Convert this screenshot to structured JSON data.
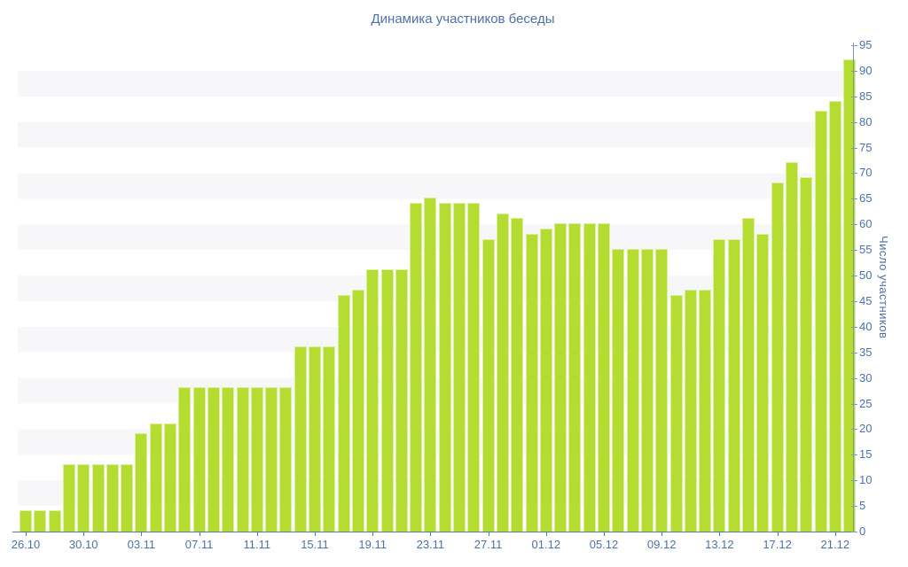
{
  "chart_data": {
    "type": "bar",
    "title": "Динамика участников беседы",
    "ylabel": "Число участников",
    "xlabel": "",
    "ylim": [
      0,
      95
    ],
    "y_ticks": [
      0,
      5,
      10,
      15,
      20,
      25,
      30,
      35,
      40,
      45,
      50,
      55,
      60,
      65,
      70,
      75,
      80,
      85,
      90,
      95
    ],
    "x_tick_labels": [
      "26.10",
      "30.10",
      "03.11",
      "07.11",
      "11.11",
      "15.11",
      "19.11",
      "23.11",
      "27.11",
      "01.12",
      "05.12",
      "09.12",
      "13.12",
      "17.12",
      "21.12"
    ],
    "grid": "horizontal-stripes-every-5-units",
    "legend_position": "none",
    "x": [
      "26.10",
      "27.10",
      "28.10",
      "29.10",
      "30.10",
      "31.10",
      "01.11",
      "02.11",
      "03.11",
      "04.11",
      "05.11",
      "06.11",
      "07.11",
      "08.11",
      "09.11",
      "10.11",
      "11.11",
      "12.11",
      "13.11",
      "14.11",
      "15.11",
      "16.11",
      "17.11",
      "18.11",
      "19.11",
      "20.11",
      "21.11",
      "22.11",
      "23.11",
      "24.11",
      "25.11",
      "26.11",
      "27.11",
      "28.11",
      "29.11",
      "30.11",
      "01.12",
      "02.12",
      "03.12",
      "04.12",
      "05.12",
      "06.12",
      "07.12",
      "08.12",
      "09.12",
      "10.12",
      "11.12",
      "12.12",
      "13.12",
      "14.12",
      "15.12",
      "16.12",
      "17.12",
      "18.12",
      "19.12",
      "20.12",
      "21.12",
      "22.12"
    ],
    "values": [
      4,
      4,
      4,
      13,
      13,
      13,
      13,
      13,
      19,
      21,
      21,
      28,
      28,
      28,
      28,
      28,
      28,
      28,
      28,
      36,
      36,
      36,
      46,
      47,
      51,
      51,
      51,
      64,
      65,
      64,
      64,
      64,
      57,
      62,
      61,
      58,
      59,
      60,
      60,
      60,
      60,
      55,
      55,
      55,
      55,
      46,
      47,
      47,
      57,
      57,
      61,
      58,
      68,
      72,
      69,
      82,
      84,
      92
    ],
    "colors": {
      "bar_fill": "#b5dc31",
      "bar_edge": "#d9ef9b",
      "stripe": "#f7f7f9",
      "background": "#ffffff",
      "text": "#4d72a7",
      "axis_line": "#8495ba",
      "baseline": "#5578ab"
    }
  }
}
